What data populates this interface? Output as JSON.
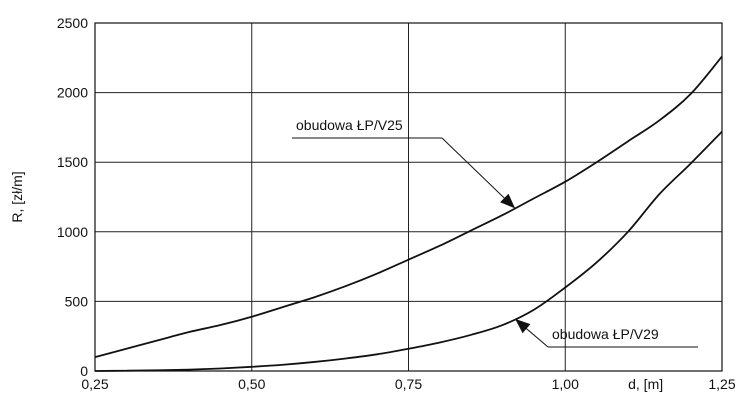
{
  "chart_data": {
    "type": "line",
    "title": "",
    "xlabel": "d, [m]",
    "ylabel": "R,  [zł/m]",
    "xlim": [
      0.25,
      1.25
    ],
    "ylim": [
      0,
      2500
    ],
    "grid": true,
    "x_ticks": [
      0.25,
      0.5,
      0.75,
      1.0,
      1.25
    ],
    "x_tick_labels": [
      "0,25",
      "0,50",
      "0,75",
      "1,00",
      "1,25"
    ],
    "y_ticks": [
      0,
      500,
      1000,
      1500,
      2000,
      2500
    ],
    "y_tick_labels": [
      "0",
      "500",
      "1000",
      "1500",
      "2000",
      "2500"
    ],
    "series": [
      {
        "name": "obudowa ŁP/V25",
        "x": [
          0.25,
          0.3,
          0.35,
          0.4,
          0.45,
          0.5,
          0.55,
          0.6,
          0.65,
          0.7,
          0.75,
          0.8,
          0.85,
          0.9,
          0.95,
          1.0,
          1.05,
          1.1,
          1.15,
          1.2,
          1.25
        ],
        "values": [
          100,
          160,
          220,
          280,
          330,
          390,
          460,
          530,
          610,
          700,
          800,
          900,
          1010,
          1120,
          1240,
          1360,
          1500,
          1650,
          1800,
          1990,
          2260
        ]
      },
      {
        "name": "obudowa ŁP/V29",
        "x": [
          0.25,
          0.3,
          0.35,
          0.4,
          0.45,
          0.5,
          0.55,
          0.6,
          0.65,
          0.7,
          0.75,
          0.8,
          0.85,
          0.9,
          0.95,
          1.0,
          1.05,
          1.1,
          1.15,
          1.2,
          1.25
        ],
        "values": [
          0,
          2,
          5,
          10,
          18,
          30,
          45,
          65,
          90,
          120,
          160,
          205,
          260,
          330,
          440,
          600,
          780,
          1000,
          1270,
          1490,
          1720
        ]
      }
    ],
    "annotations": [
      {
        "text": "obudowa ŁP/V25",
        "series": 0,
        "arrow_to_x": 0.92
      },
      {
        "text": "obudowa ŁP/V29",
        "series": 1,
        "arrow_to_x": 0.92
      }
    ]
  }
}
